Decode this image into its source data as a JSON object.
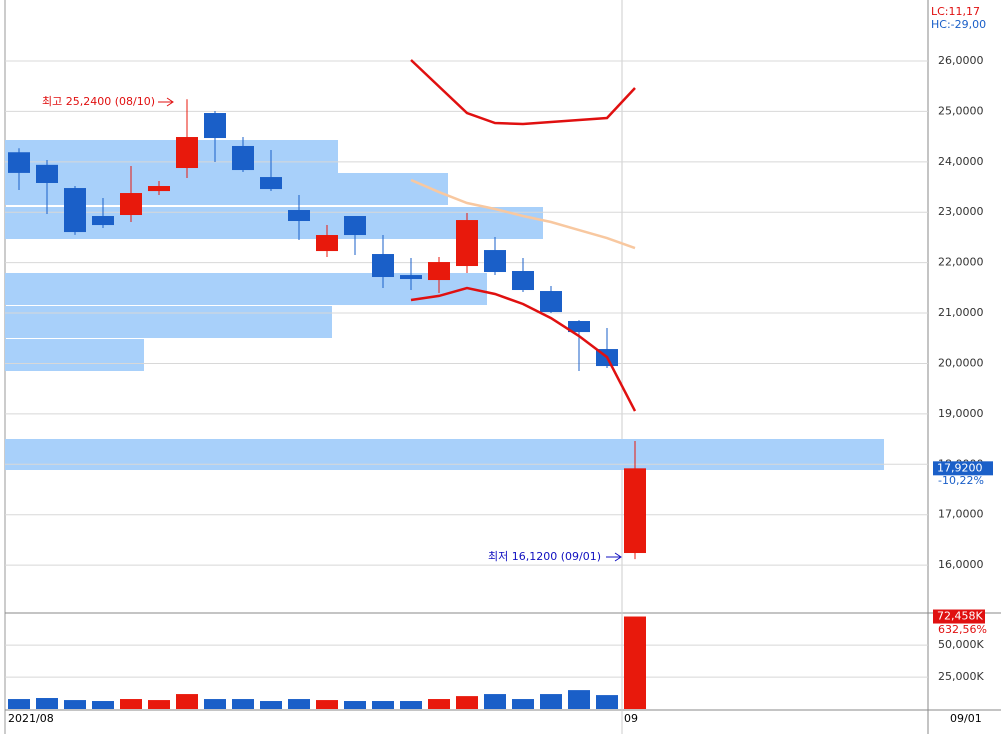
{
  "chart_data": [
    {
      "type": "candlestick",
      "up_color": "#e8190c",
      "down_color": "#1a5fc8",
      "ylim": [
        15070,
        27210
      ],
      "yticks": [
        {
          "value": 26000,
          "label": "26,0000"
        },
        {
          "value": 25000,
          "label": "25,0000"
        },
        {
          "value": 24000,
          "label": "24,0000"
        },
        {
          "value": 23000,
          "label": "23,0000"
        },
        {
          "value": 22000,
          "label": "22,0000"
        },
        {
          "value": 21000,
          "label": "21,0000"
        },
        {
          "value": 20000,
          "label": "20,0000"
        },
        {
          "value": 19000,
          "label": "19,0000"
        },
        {
          "value": 18000,
          "label": "18,0000"
        },
        {
          "value": 17000,
          "label": "17,0000"
        },
        {
          "value": 16000,
          "label": "16,0000"
        }
      ],
      "grid": true,
      "categories": [
        null,
        null,
        null,
        null,
        null,
        null,
        null,
        null,
        null,
        null,
        null,
        null,
        null,
        null,
        null,
        null,
        null,
        null,
        null,
        null,
        null,
        null,
        null
      ],
      "open": [
        24190,
        23940,
        23480,
        22925,
        22945,
        23420,
        23877,
        24968,
        24314,
        23698,
        23044,
        22230,
        22925,
        22171,
        21754,
        21655,
        21933,
        22250,
        21834,
        21437,
        20842,
        20286,
        16240
      ],
      "high": [
        24270,
        24036,
        23520,
        23282,
        23917,
        23619,
        25240,
        25008,
        24492,
        24234,
        23341,
        22746,
        22925,
        22548,
        22091,
        22111,
        22984,
        22508,
        22091,
        21536,
        20861,
        20703,
        18461
      ],
      "low": [
        23440,
        22965,
        22550,
        22687,
        22806,
        23341,
        23679,
        23996,
        23798,
        23421,
        22449,
        22111,
        22151,
        21496,
        21457,
        21397,
        21794,
        21754,
        21417,
        21000,
        19850,
        19909,
        16120
      ],
      "close": [
        23780,
        23580,
        22607,
        22746,
        23381,
        23520,
        24492,
        24472,
        23837,
        23460,
        22826,
        22548,
        22548,
        21715,
        21675,
        22012,
        22845,
        21814,
        21457,
        21020,
        20623,
        19949,
        17920
      ],
      "lines": [
        {
          "color": "#e01010",
          "x": [
            14,
            16,
            17,
            18,
            19,
            20,
            21,
            22
          ],
          "values": [
            26020,
            24968,
            24770,
            24750,
            24790,
            24830,
            24869,
            25464
          ]
        },
        {
          "color": "#f8c8a0",
          "x": [
            14,
            15,
            16,
            17,
            18,
            19,
            20,
            21,
            22
          ],
          "values": [
            23640,
            23400,
            23183,
            23064,
            22925,
            22806,
            22647,
            22488,
            22290
          ]
        },
        {
          "color": "#e01010",
          "x": [
            14,
            15,
            16,
            17,
            18,
            19,
            20,
            21,
            22
          ],
          "values": [
            21260,
            21340,
            21497,
            21378,
            21180,
            20900,
            20544,
            20127,
            19056
          ]
        }
      ],
      "high_annotation": "최고 25,2400 (08/10)",
      "low_annotation": "최저 16,1200 (09/01)",
      "lc_label": "LC:11,17",
      "hc_label": "HC:-29,00",
      "current_price": {
        "value": 17920,
        "label": "17,9200"
      },
      "change_label": "-10,22%",
      "x_labels": [
        "2021/08",
        "09"
      ],
      "last_date": "09/01"
    },
    {
      "type": "bar",
      "ylim": [
        0,
        76000
      ],
      "yticks": [
        {
          "value": 25000,
          "label": "25,000K"
        },
        {
          "value": 50000,
          "label": "50,000K"
        }
      ],
      "grid": true,
      "values": [
        7800,
        8600,
        7000,
        6250,
        7800,
        7000,
        11700,
        7800,
        7800,
        6250,
        7800,
        7000,
        6250,
        6250,
        6250,
        7800,
        10100,
        11700,
        7800,
        11700,
        14800,
        10900,
        72458
      ],
      "value_labels": [
        null,
        null,
        null,
        null,
        null,
        null,
        null,
        null,
        null,
        null,
        null,
        null,
        null,
        null,
        null,
        null,
        null,
        null,
        null,
        null,
        null,
        null,
        "72,458K"
      ],
      "change_label": "632,56%"
    }
  ]
}
